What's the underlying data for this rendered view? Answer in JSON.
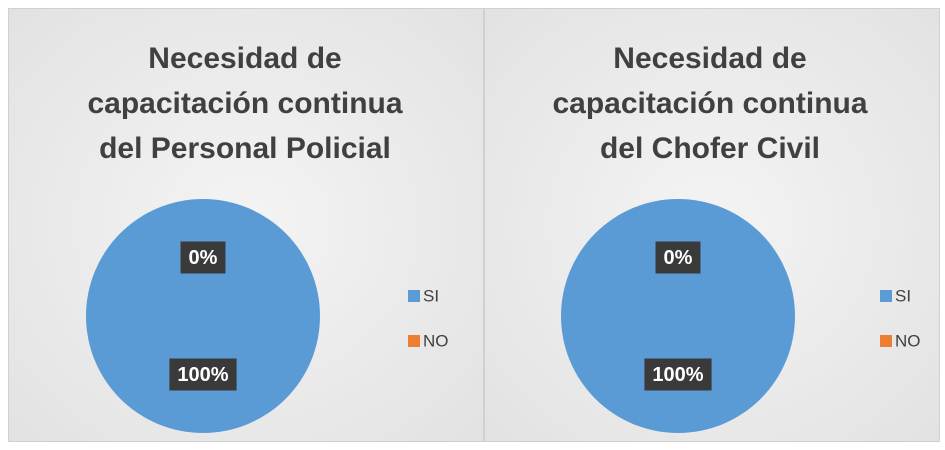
{
  "chart_data": [
    {
      "type": "pie",
      "title": "Necesidad de capacitación continua del Personal Policial",
      "categories": [
        "SI",
        "NO"
      ],
      "values": [
        100,
        0
      ],
      "value_labels": [
        "100%",
        "0%"
      ],
      "colors": [
        "#5b9bd5",
        "#ed7d31"
      ],
      "legend": "right"
    },
    {
      "type": "pie",
      "title": "Necesidad de capacitación continua del Chofer Civil",
      "categories": [
        "SI",
        "NO"
      ],
      "values": [
        100,
        0
      ],
      "value_labels": [
        "100%",
        "0%"
      ],
      "colors": [
        "#5b9bd5",
        "#ed7d31"
      ],
      "legend": "right"
    }
  ]
}
